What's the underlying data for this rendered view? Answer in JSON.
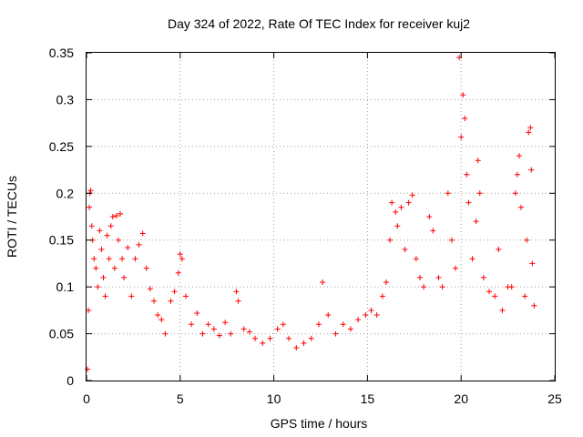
{
  "chart_data": {
    "type": "scatter",
    "title": "Day 324 of 2022, Rate Of TEC Index for receiver kuj2",
    "xlabel": "GPS time / hours",
    "ylabel": "ROTI / TECUs",
    "xlim": [
      0,
      25
    ],
    "ylim": [
      0,
      0.35
    ],
    "x_ticks": [
      "0",
      "5",
      "10",
      "15",
      "20",
      "25"
    ],
    "y_ticks": [
      "0",
      "0.05",
      "0.1",
      "0.15",
      "0.2",
      "0.25",
      "0.3",
      "0.35"
    ],
    "grid": true,
    "marker": "plus",
    "color": "#ff0000",
    "series": [
      {
        "name": "ROTI",
        "points": [
          [
            0.05,
            0.012
          ],
          [
            0.1,
            0.075
          ],
          [
            0.15,
            0.185
          ],
          [
            0.18,
            0.2
          ],
          [
            0.22,
            0.203
          ],
          [
            0.28,
            0.165
          ],
          [
            0.32,
            0.15
          ],
          [
            0.4,
            0.13
          ],
          [
            0.5,
            0.12
          ],
          [
            0.6,
            0.1
          ],
          [
            0.7,
            0.16
          ],
          [
            0.8,
            0.14
          ],
          [
            0.9,
            0.11
          ],
          [
            1.0,
            0.09
          ],
          [
            1.1,
            0.155
          ],
          [
            1.2,
            0.13
          ],
          [
            1.3,
            0.165
          ],
          [
            1.4,
            0.175
          ],
          [
            1.5,
            0.12
          ],
          [
            1.6,
            0.176
          ],
          [
            1.7,
            0.15
          ],
          [
            1.8,
            0.178
          ],
          [
            1.9,
            0.13
          ],
          [
            2.0,
            0.11
          ],
          [
            2.2,
            0.142
          ],
          [
            2.4,
            0.09
          ],
          [
            2.6,
            0.13
          ],
          [
            2.8,
            0.145
          ],
          [
            3.0,
            0.157
          ],
          [
            3.2,
            0.12
          ],
          [
            3.4,
            0.098
          ],
          [
            3.6,
            0.085
          ],
          [
            3.8,
            0.07
          ],
          [
            4.0,
            0.065
          ],
          [
            4.2,
            0.05
          ],
          [
            4.5,
            0.085
          ],
          [
            4.7,
            0.095
          ],
          [
            4.9,
            0.115
          ],
          [
            5.0,
            0.135
          ],
          [
            5.1,
            0.13
          ],
          [
            5.3,
            0.09
          ],
          [
            5.6,
            0.06
          ],
          [
            5.9,
            0.072
          ],
          [
            6.2,
            0.05
          ],
          [
            6.5,
            0.06
          ],
          [
            6.8,
            0.055
          ],
          [
            7.1,
            0.048
          ],
          [
            7.4,
            0.062
          ],
          [
            7.7,
            0.05
          ],
          [
            8.0,
            0.095
          ],
          [
            8.1,
            0.085
          ],
          [
            8.4,
            0.055
          ],
          [
            8.7,
            0.052
          ],
          [
            9.0,
            0.045
          ],
          [
            9.4,
            0.04
          ],
          [
            9.8,
            0.045
          ],
          [
            10.2,
            0.055
          ],
          [
            10.5,
            0.06
          ],
          [
            10.8,
            0.045
          ],
          [
            11.2,
            0.035
          ],
          [
            11.6,
            0.04
          ],
          [
            12.0,
            0.045
          ],
          [
            12.4,
            0.06
          ],
          [
            12.6,
            0.105
          ],
          [
            12.9,
            0.07
          ],
          [
            13.3,
            0.05
          ],
          [
            13.7,
            0.06
          ],
          [
            14.1,
            0.055
          ],
          [
            14.5,
            0.065
          ],
          [
            14.9,
            0.07
          ],
          [
            15.2,
            0.075
          ],
          [
            15.5,
            0.07
          ],
          [
            15.8,
            0.09
          ],
          [
            16.0,
            0.105
          ],
          [
            16.2,
            0.15
          ],
          [
            16.3,
            0.19
          ],
          [
            16.5,
            0.18
          ],
          [
            16.6,
            0.165
          ],
          [
            16.8,
            0.185
          ],
          [
            17.0,
            0.14
          ],
          [
            17.2,
            0.19
          ],
          [
            17.4,
            0.198
          ],
          [
            17.6,
            0.13
          ],
          [
            17.8,
            0.11
          ],
          [
            18.0,
            0.1
          ],
          [
            18.3,
            0.175
          ],
          [
            18.5,
            0.16
          ],
          [
            18.8,
            0.11
          ],
          [
            19.0,
            0.1
          ],
          [
            19.3,
            0.2
          ],
          [
            19.5,
            0.15
          ],
          [
            19.7,
            0.12
          ],
          [
            19.9,
            0.345
          ],
          [
            20.0,
            0.26
          ],
          [
            20.1,
            0.305
          ],
          [
            20.2,
            0.28
          ],
          [
            20.3,
            0.22
          ],
          [
            20.4,
            0.19
          ],
          [
            20.6,
            0.13
          ],
          [
            20.8,
            0.17
          ],
          [
            20.9,
            0.235
          ],
          [
            21.0,
            0.2
          ],
          [
            21.2,
            0.11
          ],
          [
            21.5,
            0.095
          ],
          [
            21.8,
            0.09
          ],
          [
            22.0,
            0.14
          ],
          [
            22.2,
            0.075
          ],
          [
            22.5,
            0.1
          ],
          [
            22.7,
            0.1
          ],
          [
            22.9,
            0.2
          ],
          [
            23.0,
            0.22
          ],
          [
            23.1,
            0.24
          ],
          [
            23.2,
            0.185
          ],
          [
            23.4,
            0.09
          ],
          [
            23.5,
            0.15
          ],
          [
            23.6,
            0.265
          ],
          [
            23.7,
            0.27
          ],
          [
            23.75,
            0.225
          ],
          [
            23.8,
            0.125
          ],
          [
            23.9,
            0.08
          ]
        ]
      }
    ]
  }
}
